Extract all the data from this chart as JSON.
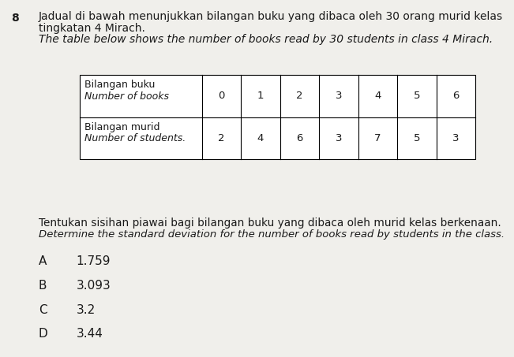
{
  "question_number": "8",
  "title_malay_line1": "Jadual di bawah menunjukkan bilangan buku yang dibaca oleh 30 orang murid kelas",
  "title_malay_line2": "tingkatan 4 Mirach.",
  "title_english": "The table below shows the number of books read by 30 students in class 4 Mirach.",
  "row1_label_malay": "Bilangan buku",
  "row1_label_english": "Number of books",
  "row2_label_malay": "Bilangan murid",
  "row2_label_english": "Number of students.",
  "books": [
    0,
    1,
    2,
    3,
    4,
    5,
    6
  ],
  "students": [
    2,
    4,
    6,
    3,
    7,
    5,
    3
  ],
  "question_text_malay": "Tentukan sisihan piawai bagi bilangan buku yang dibaca oleh murid kelas berkenaan.",
  "question_text_english": "Determine the standard deviation for the number of books read by students in the class.",
  "options": [
    {
      "label": "A",
      "value": "1.759"
    },
    {
      "label": "B",
      "value": "3.093"
    },
    {
      "label": "C",
      "value": "3.2"
    },
    {
      "label": "D",
      "value": "3.44"
    }
  ],
  "bg_color": "#f0efeb",
  "text_color": "#1a1a1a",
  "title_fontsize": 10.0,
  "label_fontsize": 9.0,
  "data_fontsize": 9.5,
  "option_fontsize": 11.0,
  "question_fontsize": 9.8
}
